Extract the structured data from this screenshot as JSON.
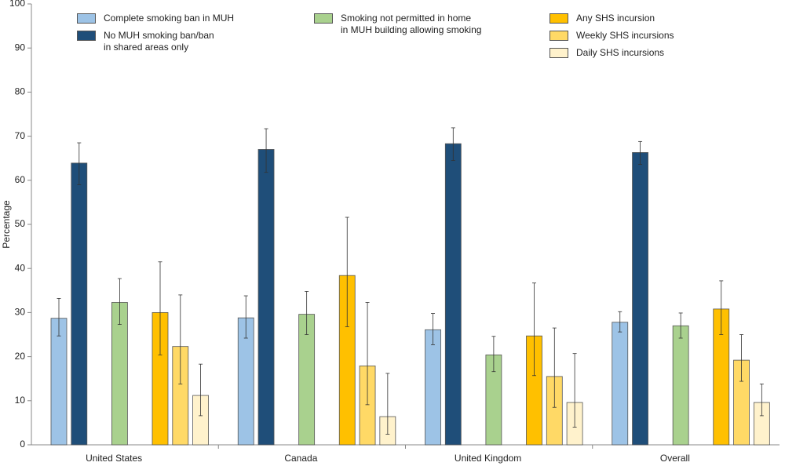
{
  "chart_data": {
    "type": "bar",
    "y_label": "Percentage",
    "categories": [
      "United States",
      "Canada",
      "United Kingdom",
      "Overall"
    ],
    "ylim": [
      0,
      100
    ],
    "yticks": [
      0,
      10,
      20,
      30,
      40,
      50,
      60,
      70,
      80,
      90,
      100
    ],
    "grid": false,
    "series": [
      {
        "name": "Complete smoking ban in MUH",
        "color": "#9dc3e6",
        "values": [
          28.7,
          28.8,
          26.1,
          27.8
        ],
        "ci_low": [
          24.7,
          24.2,
          22.7,
          25.6
        ],
        "ci_high": [
          33.2,
          33.8,
          29.8,
          30.2
        ]
      },
      {
        "name": "No MUH smoking ban/ban\nin shared areas only",
        "color": "#1f4e79",
        "values": [
          63.9,
          67.0,
          68.3,
          66.3
        ],
        "ci_low": [
          59.0,
          61.8,
          64.5,
          63.6
        ],
        "ci_high": [
          68.5,
          71.7,
          71.9,
          68.8
        ]
      },
      {
        "name": "Smoking not permitted in home\nin MUH building allowing smoking",
        "color": "#a9d18e",
        "values": [
          32.3,
          29.6,
          20.4,
          27.0
        ],
        "ci_low": [
          27.3,
          25.0,
          16.6,
          24.2
        ],
        "ci_high": [
          37.7,
          34.8,
          24.6,
          29.9
        ]
      },
      {
        "name": "Any SHS incursion",
        "color": "#ffc000",
        "values": [
          30.0,
          38.4,
          24.7,
          30.8
        ],
        "ci_low": [
          20.4,
          26.8,
          15.7,
          25.0
        ],
        "ci_high": [
          41.5,
          51.6,
          36.7,
          37.2
        ]
      },
      {
        "name": "Weekly SHS incursions",
        "color": "#ffd966",
        "values": [
          22.3,
          17.9,
          15.5,
          19.2
        ],
        "ci_low": [
          13.8,
          9.1,
          8.5,
          14.4
        ],
        "ci_high": [
          34.0,
          32.3,
          26.5,
          25.0
        ]
      },
      {
        "name": "Daily SHS incursions",
        "color": "#fff2cc",
        "values": [
          11.2,
          6.4,
          9.6,
          9.6
        ],
        "ci_low": [
          6.6,
          2.4,
          4.0,
          6.6
        ],
        "ci_high": [
          18.3,
          16.2,
          20.7,
          13.8
        ]
      }
    ]
  }
}
